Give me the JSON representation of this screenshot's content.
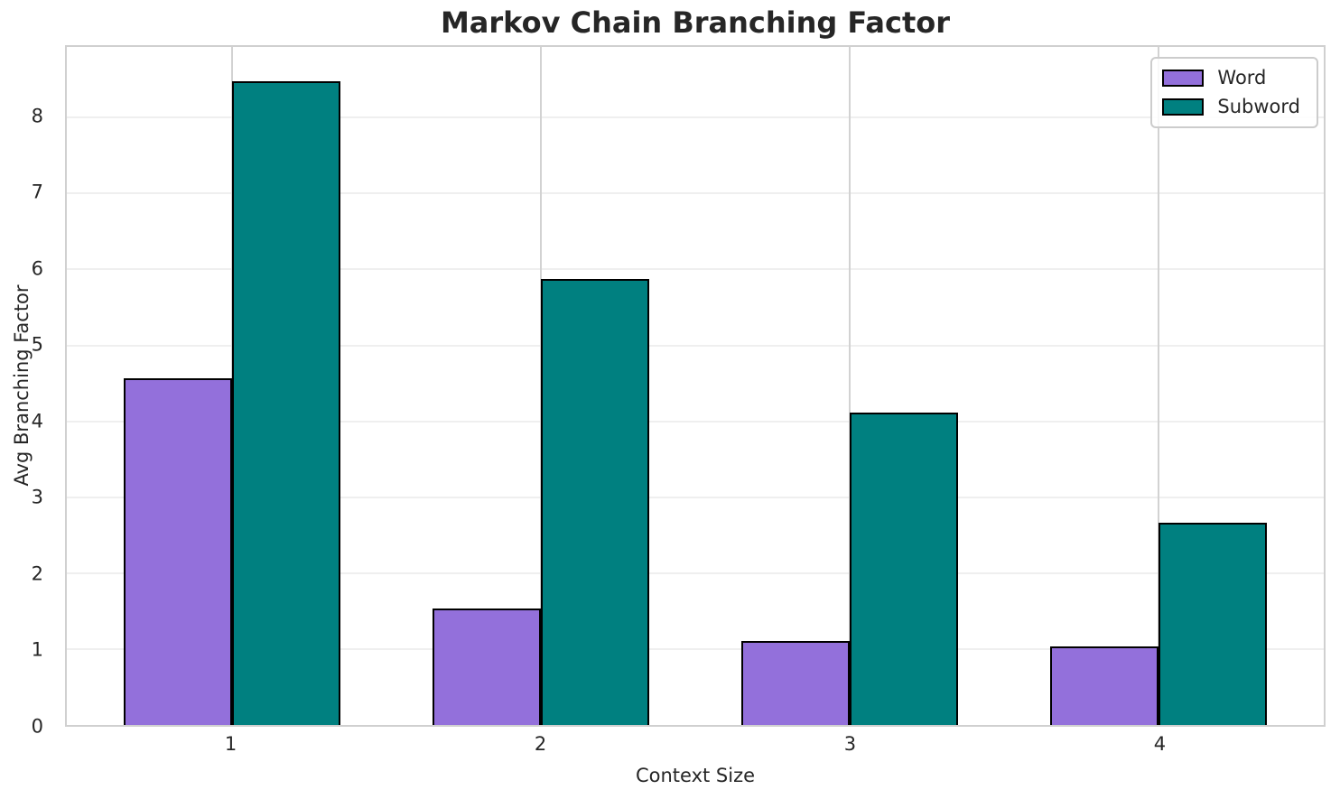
{
  "chart_data": {
    "type": "bar",
    "title": "Markov Chain Branching Factor",
    "xlabel": "Context Size",
    "ylabel": "Avg Branching Factor",
    "categories": [
      1,
      2,
      3,
      4
    ],
    "series": [
      {
        "name": "Word",
        "color": "#9370DB",
        "edge_color": "#000000",
        "values": [
          4.57,
          1.54,
          1.11,
          1.04
        ]
      },
      {
        "name": "Subword",
        "color": "#008080",
        "edge_color": "#000000",
        "values": [
          8.48,
          5.88,
          4.12,
          2.66
        ]
      }
    ],
    "bar_width": 0.35,
    "xlim": [
      0.465,
      4.535
    ],
    "ylim": [
      0,
      8.93
    ],
    "yticks": [
      0,
      1,
      2,
      3,
      4,
      5,
      6,
      7,
      8
    ],
    "grid": true,
    "legend_position": "upper right"
  }
}
